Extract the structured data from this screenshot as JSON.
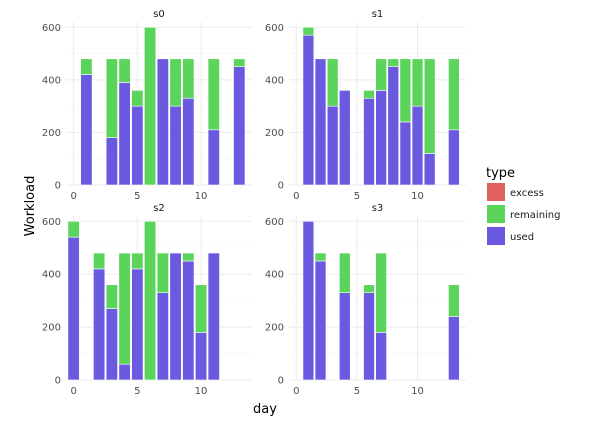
{
  "chart_data": {
    "type": "bar",
    "stacked": true,
    "xlabel": "day",
    "ylabel": "Workload",
    "ylim": [
      0,
      620
    ],
    "y_ticks": [
      0,
      200,
      400,
      600
    ],
    "grid": true,
    "legend": {
      "title": "type",
      "placement": "right",
      "entries": [
        {
          "name": "excess",
          "color": "#e06060"
        },
        {
          "name": "remaining",
          "color": "#5ad45a"
        },
        {
          "name": "used",
          "color": "#6a5ae0"
        }
      ]
    },
    "panels": [
      {
        "title": "s0",
        "xlim": [
          -0.6,
          14
        ],
        "x_ticks": [
          0,
          5,
          10
        ],
        "x": [
          1,
          3,
          4,
          5,
          6,
          7,
          8,
          9,
          11,
          13
        ],
        "series": [
          {
            "name": "used",
            "values": [
              420,
              180,
              390,
              300,
              0,
              480,
              300,
              330,
              210,
              450
            ]
          },
          {
            "name": "remaining",
            "values": [
              60,
              300,
              90,
              60,
              600,
              0,
              180,
              150,
              270,
              30
            ]
          }
        ]
      },
      {
        "title": "s1",
        "xlim": [
          -0.6,
          14
        ],
        "x_ticks": [
          0,
          5,
          10
        ],
        "x": [
          1,
          2,
          3,
          4,
          6,
          7,
          8,
          9,
          10,
          11,
          13
        ],
        "series": [
          {
            "name": "used",
            "values": [
              570,
              480,
              300,
              360,
              330,
              360,
              450,
              240,
              300,
              120,
              210
            ]
          },
          {
            "name": "remaining",
            "values": [
              30,
              0,
              180,
              0,
              30,
              120,
              30,
              240,
              180,
              360,
              270
            ]
          }
        ]
      },
      {
        "title": "s2",
        "xlim": [
          -0.6,
          14
        ],
        "x_ticks": [
          0,
          5,
          10
        ],
        "x": [
          0,
          2,
          3,
          4,
          5,
          6,
          7,
          8,
          9,
          10,
          11
        ],
        "series": [
          {
            "name": "used",
            "values": [
              540,
              420,
              270,
              60,
              420,
              0,
              330,
              480,
              450,
              180,
              480
            ]
          },
          {
            "name": "remaining",
            "values": [
              60,
              60,
              90,
              420,
              60,
              600,
              150,
              0,
              30,
              180,
              0
            ]
          }
        ]
      },
      {
        "title": "s3",
        "xlim": [
          -0.6,
          14
        ],
        "x_ticks": [
          0,
          5,
          10
        ],
        "x": [
          1,
          2,
          4,
          6,
          7,
          13
        ],
        "series": [
          {
            "name": "used",
            "values": [
              600,
              450,
              330,
              330,
              180,
              240
            ]
          },
          {
            "name": "remaining",
            "values": [
              0,
              30,
              150,
              30,
              300,
              120
            ]
          }
        ]
      }
    ]
  }
}
